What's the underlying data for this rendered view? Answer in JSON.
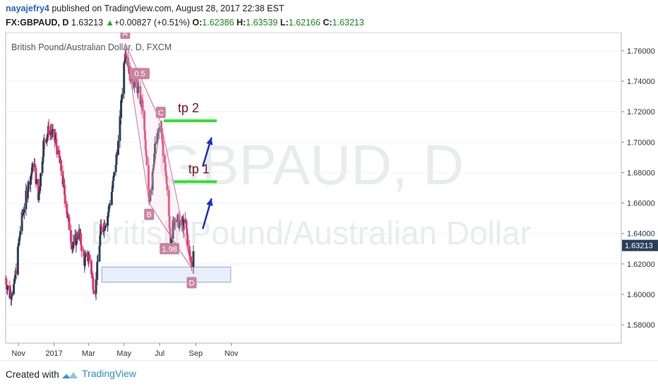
{
  "header": {
    "user": "nayajefry4",
    "published": " published on TradingView.com, August 28, 2017 22:38 EST",
    "symbol": "FX:GBPAUD, D",
    "last": "1.63213",
    "arrow": "▲",
    "change": "+0.00827 (+0.51%)",
    "o_label": "O:",
    "o_value": "1.62386",
    "h_label": "H:",
    "h_value": "1.63539",
    "l_label": "L:",
    "l_value": "1.62166",
    "c_label": "C:",
    "c_value": "1.63213"
  },
  "footer": {
    "created_with": "Created with",
    "brand": "TradingView"
  },
  "chart_data": {
    "type": "candlestick",
    "title": "British Pound/Australian Dollar, D, FXCM",
    "watermark_symbol": "GBPAUD, D",
    "watermark_name": "British Pound/Australian Dollar",
    "yticks": [
      "1.76000",
      "1.74000",
      "1.72000",
      "1.70000",
      "1.68000",
      "1.66000",
      "1.64000",
      "1.62000",
      "1.60000",
      "1.58000"
    ],
    "ylim": [
      1.568,
      1.772
    ],
    "xticks": [
      "Nov",
      "2017",
      "Mar",
      "May",
      "Jul",
      "Sep",
      "Nov"
    ],
    "last_price_label": "1.63213",
    "pattern_points": [
      {
        "label": "A",
        "date": "2017-05-03",
        "price": 1.765
      },
      {
        "label": "B",
        "date": "2017-06-13",
        "price": 1.66
      },
      {
        "label": "C",
        "date": "2017-07-03",
        "price": 1.713
      },
      {
        "label": "D",
        "date": "2017-08-25",
        "price": 1.617
      }
    ],
    "ratios": [
      {
        "label": "0.5",
        "date": "2017-05-28",
        "price": 1.745
      },
      {
        "label": "1.98",
        "date": "2017-07-18",
        "price": 1.63
      }
    ],
    "targets": [
      {
        "label": "tp 2",
        "price": 1.714
      },
      {
        "label": "tp 1",
        "price": 1.674
      }
    ],
    "support_zone": [
      1.608,
      1.618
    ],
    "colors": {
      "up": "#2a3f5a",
      "down": "#e8336c",
      "target": "#33e033",
      "arrow": "#1a2ec8",
      "pattern": "#c67a9a",
      "zone": "#e8eefa"
    }
  }
}
